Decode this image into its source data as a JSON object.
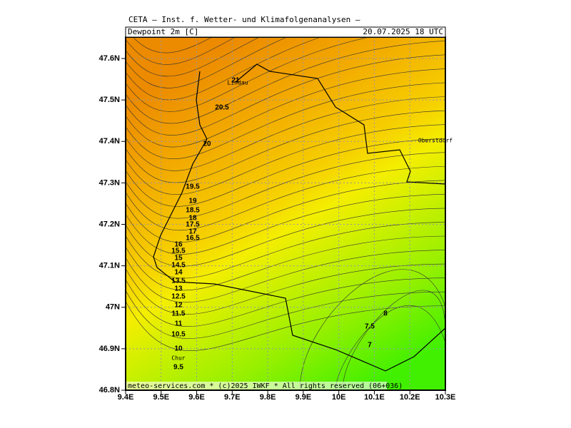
{
  "header": {
    "title": "CETA – Inst. f. Wetter- und Klimafolgenanalysen –",
    "field": "Dewpoint 2m [C]",
    "time": "20.07.2025 18 UTC"
  },
  "axes": {
    "lon_labels": [
      "9.4E",
      "9.5E",
      "9.6E",
      "9.7E",
      "9.8E",
      "9.9E",
      "10E",
      "10.1E",
      "10.2E",
      "10.3E"
    ],
    "lat_labels": [
      "47.6N",
      "47.5N",
      "47.4N",
      "47.3N",
      "47.2N",
      "47.1N",
      "47N",
      "46.9N",
      "46.8N"
    ]
  },
  "contour_labels": [
    21,
    20.5,
    20,
    19.5,
    19,
    18.5,
    18,
    17.5,
    17,
    16.5,
    16,
    15.5,
    15,
    14.5,
    14,
    13.5,
    13,
    12.5,
    12,
    11.5,
    11,
    10.5,
    10,
    9.5,
    8,
    7.5,
    7
  ],
  "places": [
    "Lindau",
    "Oberstdorf",
    "Chur"
  ],
  "footer": "meteo-services.com * (c)2025 IWKF * All rights reserved (06+036)"
}
